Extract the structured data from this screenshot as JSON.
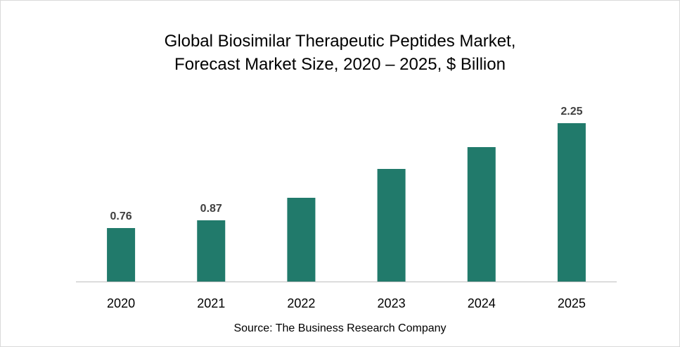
{
  "chart_data": {
    "type": "bar",
    "title_lines": [
      "Global Biosimilar Therapeutic Peptides Market,",
      "Forecast Market Size, 2020 – 2025, $ Billion"
    ],
    "categories": [
      "2020",
      "2021",
      "2022",
      "2023",
      "2024",
      "2025"
    ],
    "values": [
      0.76,
      0.87,
      1.19,
      1.6,
      1.91,
      2.25
    ],
    "data_labels": [
      "0.76",
      "0.87",
      "",
      "",
      "",
      "2.25"
    ],
    "ylim": [
      0,
      2.25
    ],
    "grid": false,
    "legend": "none",
    "bar_color": "#217a6b",
    "source": "Source: The Business Research Company"
  }
}
